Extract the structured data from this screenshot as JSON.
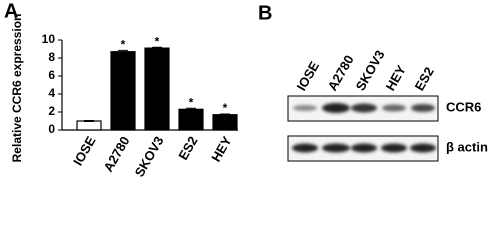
{
  "panels": [
    "A",
    "B"
  ],
  "chart_data": {
    "type": "bar",
    "y_label": "Relative CCR6 expression",
    "categories": [
      "IOSE",
      "A2780",
      "SKOV3",
      "ES2",
      "HEY"
    ],
    "values": [
      1.0,
      8.7,
      9.1,
      2.3,
      1.7
    ],
    "errors": [
      0.05,
      0.15,
      0.1,
      0.12,
      0.08
    ],
    "significance": [
      null,
      "*",
      "*",
      "*",
      "*"
    ],
    "colors": [
      "#ffffff",
      "#000000",
      "#000000",
      "#000000",
      "#000000"
    ],
    "ylim": [
      0,
      10
    ],
    "yticks": [
      0,
      2,
      4,
      6,
      8,
      10
    ],
    "grid": false
  },
  "blot": {
    "lanes": [
      "IOSE",
      "A2780",
      "SKOV3",
      "HEY",
      "ES2"
    ],
    "bands": [
      "CCR6",
      "β actin"
    ]
  }
}
